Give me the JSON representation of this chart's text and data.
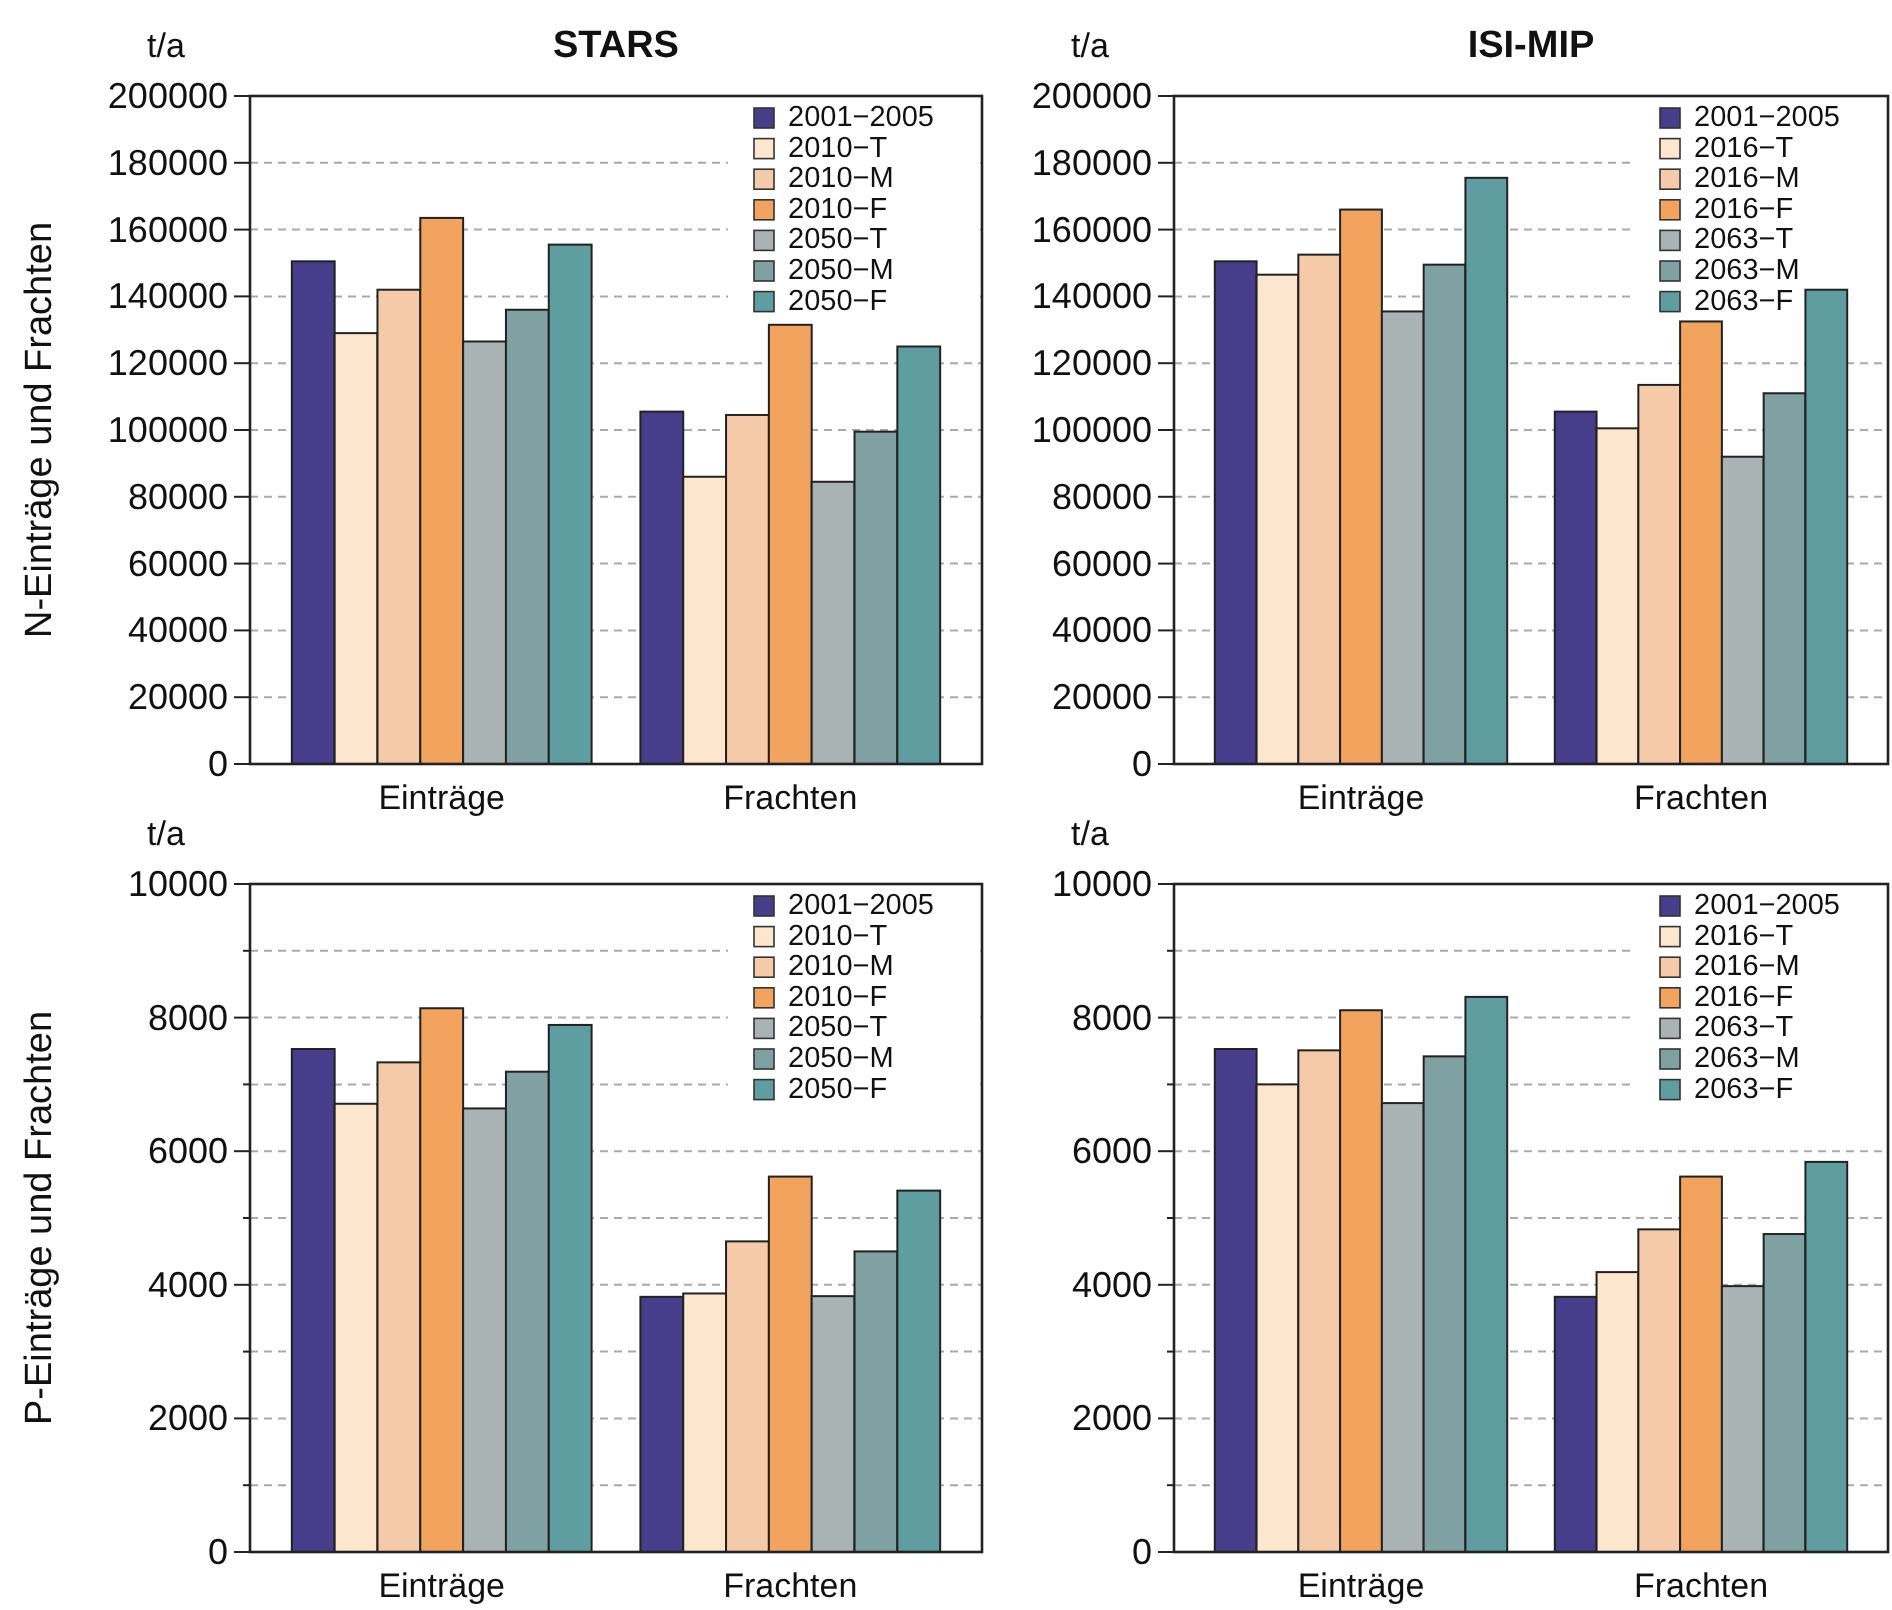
{
  "chart_data": [
    {
      "type": "bar",
      "title": "STARS",
      "ylabel": "N-Einträge und Frachten",
      "annotations": [
        "t/a"
      ],
      "categories": [
        "Einträge",
        "Frachten"
      ],
      "series": [
        {
          "name": "2001−2005",
          "color": "#483d8b",
          "values": [
            150500,
            105500
          ]
        },
        {
          "name": "2010−T",
          "color": "#fde6ce",
          "values": [
            129000,
            86000
          ]
        },
        {
          "name": "2010−M",
          "color": "#f4caa9",
          "values": [
            142000,
            104500
          ]
        },
        {
          "name": "2010−F",
          "color": "#f2a35e",
          "values": [
            163500,
            131500
          ]
        },
        {
          "name": "2050−T",
          "color": "#aab3b3",
          "values": [
            126500,
            84500
          ]
        },
        {
          "name": "2050−M",
          "color": "#80a1a1",
          "values": [
            136000,
            99500
          ]
        },
        {
          "name": "2050−F",
          "color": "#5f9ea0",
          "values": [
            155500,
            125000
          ]
        }
      ],
      "ylim": [
        0,
        200000
      ],
      "yticks": [
        0,
        20000,
        40000,
        60000,
        80000,
        100000,
        120000,
        140000,
        160000,
        180000,
        200000
      ],
      "grid": "y",
      "legend": "top right"
    },
    {
      "type": "bar",
      "title": "ISI-MIP",
      "annotations": [
        "t/a"
      ],
      "categories": [
        "Einträge",
        "Frachten"
      ],
      "series": [
        {
          "name": "2001−2005",
          "color": "#483d8b",
          "values": [
            150500,
            105500
          ]
        },
        {
          "name": "2016−T",
          "color": "#fde6ce",
          "values": [
            146500,
            100500
          ]
        },
        {
          "name": "2016−M",
          "color": "#f4caa9",
          "values": [
            152500,
            113500
          ]
        },
        {
          "name": "2016−F",
          "color": "#f2a35e",
          "values": [
            166000,
            132500
          ]
        },
        {
          "name": "2063−T",
          "color": "#aab3b3",
          "values": [
            135500,
            92000
          ]
        },
        {
          "name": "2063−M",
          "color": "#80a1a1",
          "values": [
            149500,
            111000
          ]
        },
        {
          "name": "2063−F",
          "color": "#5f9ea0",
          "values": [
            175500,
            142000
          ]
        }
      ],
      "ylim": [
        0,
        200000
      ],
      "yticks": [
        0,
        20000,
        40000,
        60000,
        80000,
        100000,
        120000,
        140000,
        160000,
        180000,
        200000
      ],
      "grid": "y",
      "legend": "top right"
    },
    {
      "type": "bar",
      "ylabel": "P-Einträge und Frachten",
      "annotations": [
        "t/a"
      ],
      "categories": [
        "Einträge",
        "Frachten"
      ],
      "series": [
        {
          "name": "2001−2005",
          "color": "#483d8b",
          "values": [
            7530,
            3820
          ]
        },
        {
          "name": "2010−T",
          "color": "#fde6ce",
          "values": [
            6710,
            3870
          ]
        },
        {
          "name": "2010−M",
          "color": "#f4caa9",
          "values": [
            7330,
            4650
          ]
        },
        {
          "name": "2010−F",
          "color": "#f2a35e",
          "values": [
            8140,
            5620
          ]
        },
        {
          "name": "2050−T",
          "color": "#aab3b3",
          "values": [
            6640,
            3830
          ]
        },
        {
          "name": "2050−M",
          "color": "#80a1a1",
          "values": [
            7190,
            4500
          ]
        },
        {
          "name": "2050−F",
          "color": "#5f9ea0",
          "values": [
            7890,
            5410
          ]
        }
      ],
      "ylim": [
        0,
        10000
      ],
      "yticks": [
        0,
        {
          "value": 1000,
          "label": null
        },
        2000,
        {
          "value": 3000,
          "label": null
        },
        4000,
        {
          "value": 5000,
          "label": null
        },
        6000,
        {
          "value": 7000,
          "label": null
        },
        8000,
        {
          "value": 9000,
          "label": null
        },
        10000
      ],
      "grid": "y",
      "legend": "top right"
    },
    {
      "type": "bar",
      "annotations": [
        "t/a"
      ],
      "categories": [
        "Einträge",
        "Frachten"
      ],
      "series": [
        {
          "name": "2001−2005",
          "color": "#483d8b",
          "values": [
            7530,
            3820
          ]
        },
        {
          "name": "2016−T",
          "color": "#fde6ce",
          "values": [
            7000,
            4190
          ]
        },
        {
          "name": "2016−M",
          "color": "#f4caa9",
          "values": [
            7510,
            4830
          ]
        },
        {
          "name": "2016−F",
          "color": "#f2a35e",
          "values": [
            8110,
            5620
          ]
        },
        {
          "name": "2063−T",
          "color": "#aab3b3",
          "values": [
            6720,
            3980
          ]
        },
        {
          "name": "2063−M",
          "color": "#80a1a1",
          "values": [
            7420,
            4760
          ]
        },
        {
          "name": "2063−F",
          "color": "#5f9ea0",
          "values": [
            8310,
            5840
          ]
        }
      ],
      "ylim": [
        0,
        10000
      ],
      "yticks": [
        0,
        {
          "value": 1000,
          "label": null
        },
        2000,
        {
          "value": 3000,
          "label": null
        },
        4000,
        {
          "value": 5000,
          "label": null
        },
        6000,
        {
          "value": 7000,
          "label": null
        },
        8000,
        {
          "value": 9000,
          "label": null
        },
        10000
      ],
      "grid": "y",
      "legend": "top right"
    }
  ]
}
